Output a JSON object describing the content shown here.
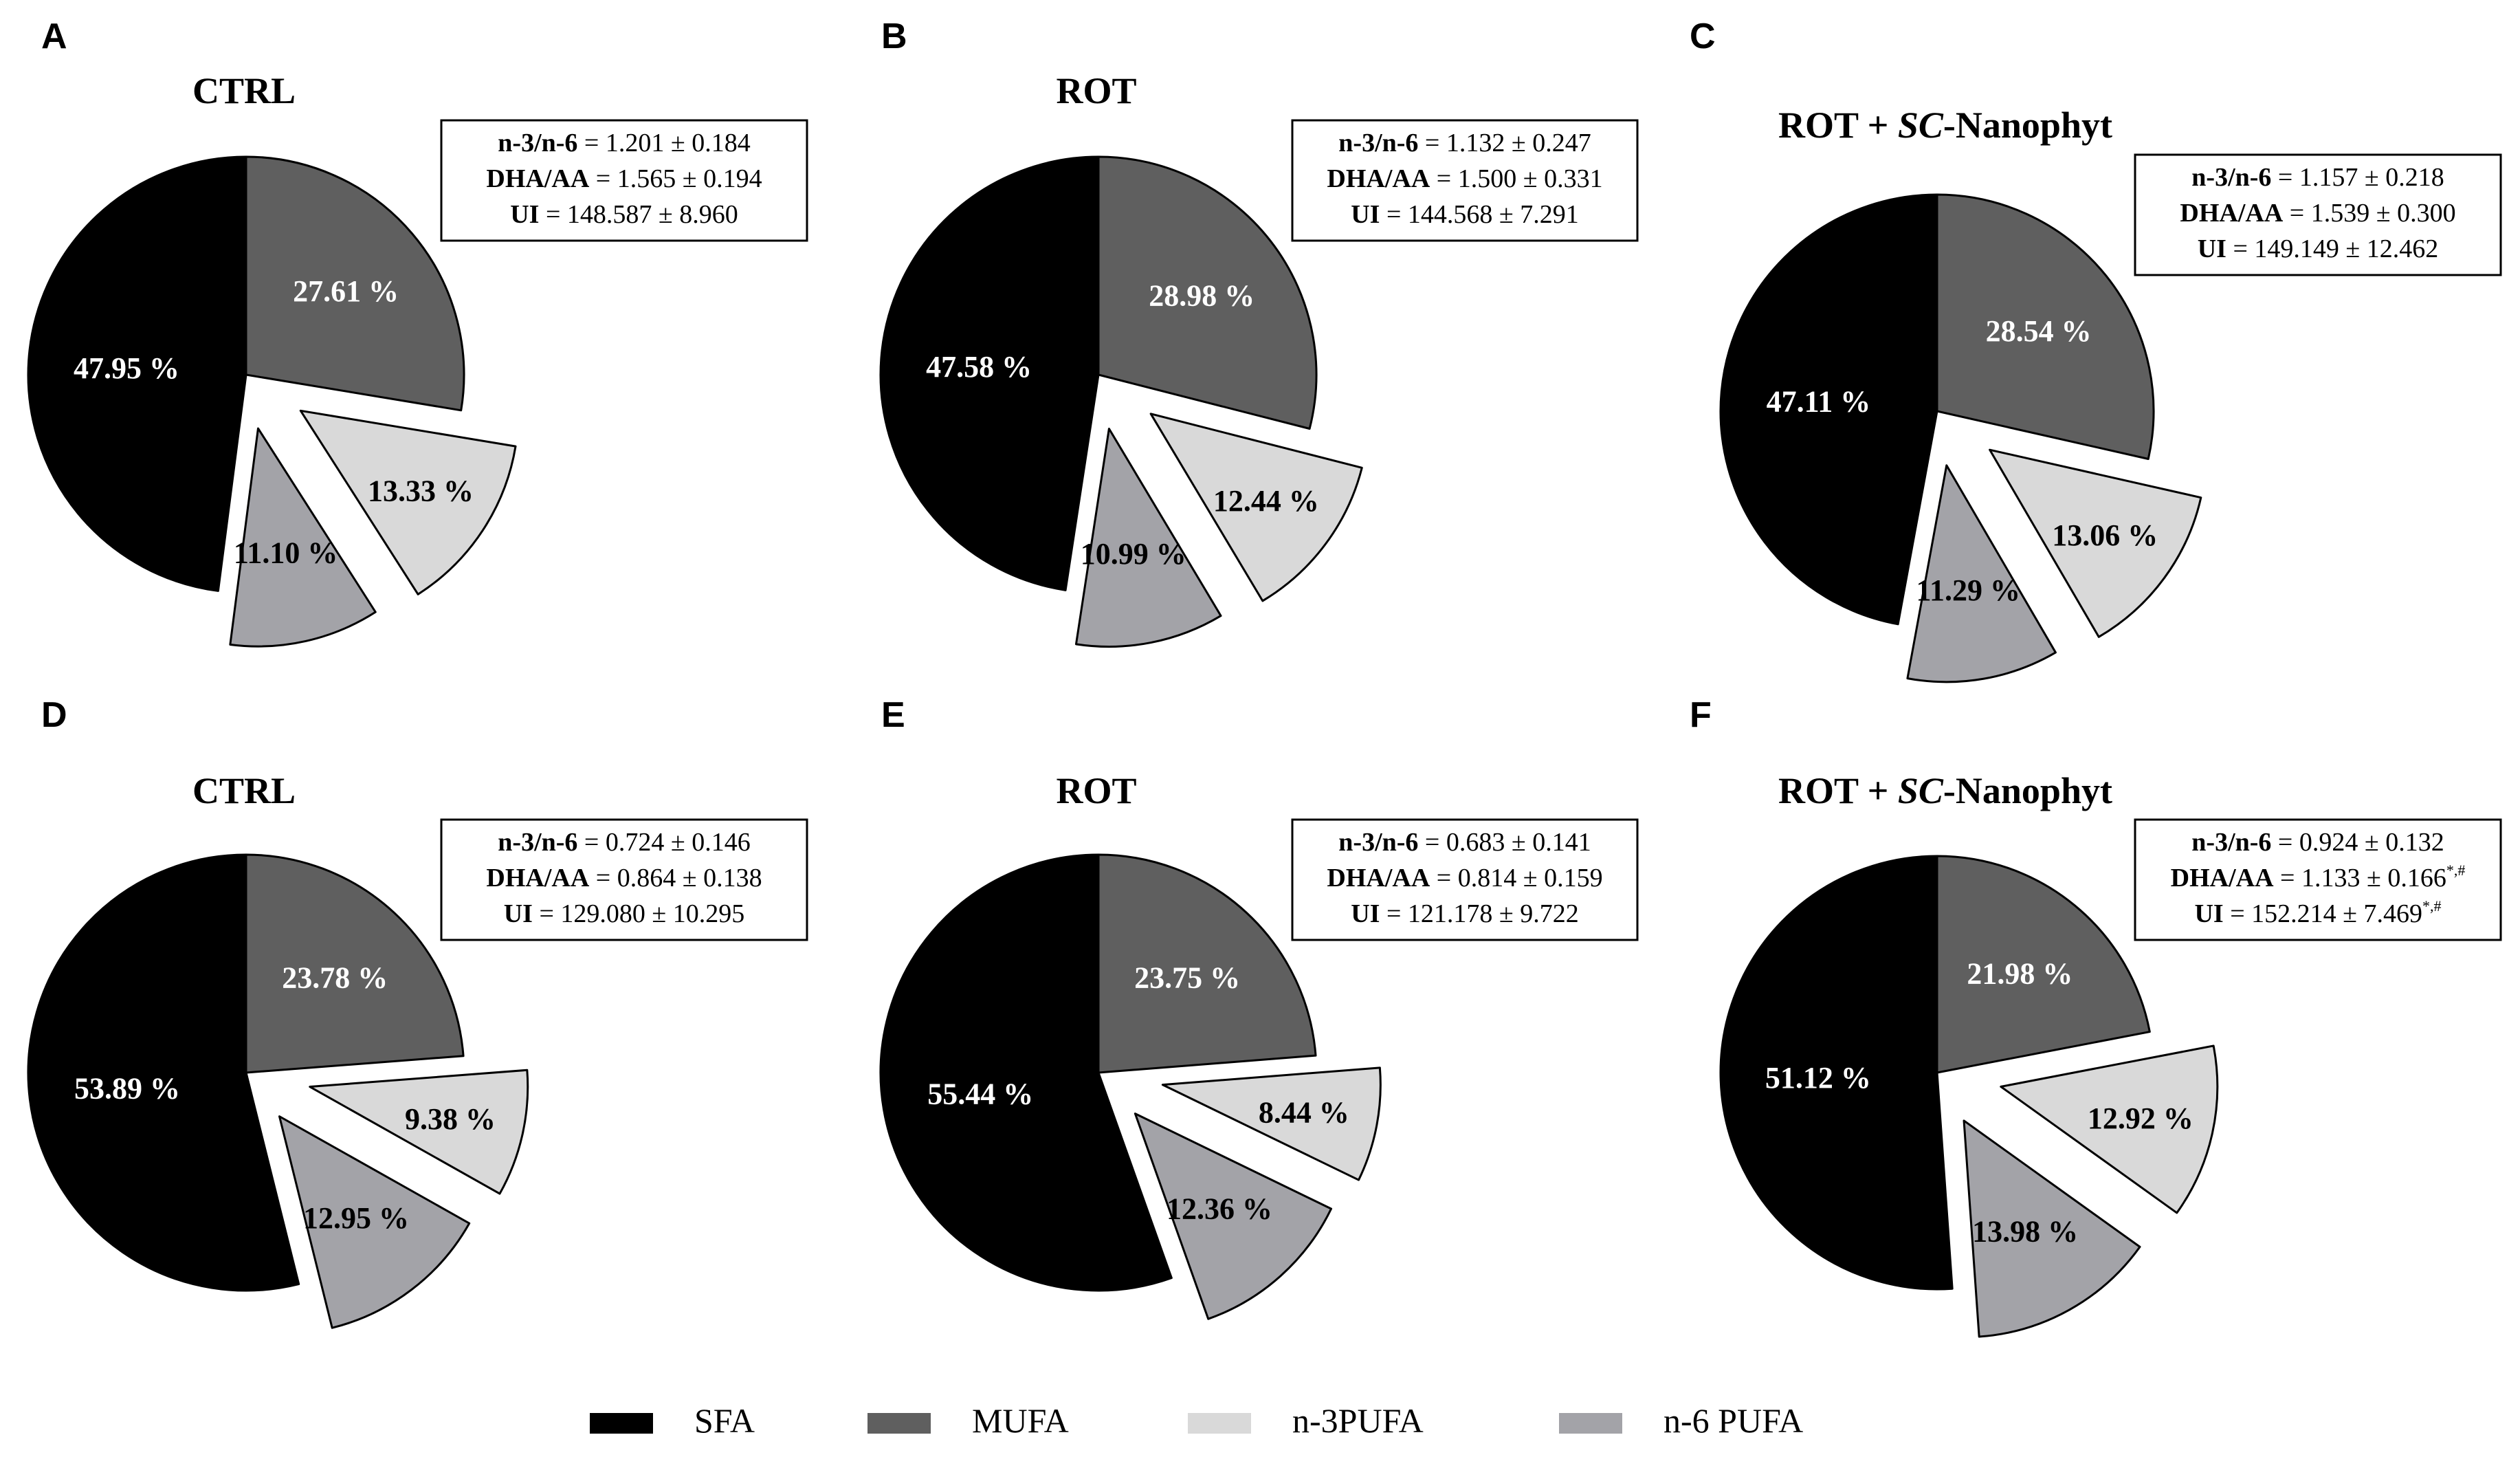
{
  "slice_colors": {
    "SFA": "#000000",
    "MUFA": "#5f5f5f",
    "n-3PUFA": "#d9d9d9",
    "n-6 PUFA": "#a3a3a8"
  },
  "legend": [
    {
      "name": "SFA",
      "color": "#000000"
    },
    {
      "name": "MUFA",
      "color": "#5f5f5f"
    },
    {
      "name": "n-3PUFA",
      "color": "#d9d9d9"
    },
    {
      "name": "n-6 PUFA",
      "color": "#a3a3a8"
    }
  ],
  "chart_data": [
    {
      "type": "pie",
      "panel": "A",
      "title": "CTRL",
      "categories": [
        "SFA",
        "MUFA",
        "n-3PUFA",
        "n-6 PUFA"
      ],
      "values": [
        47.95,
        27.61,
        13.33,
        11.1
      ],
      "labels": [
        "47.95 %",
        "27.61 %",
        "13.33 %",
        "11.10 %"
      ],
      "stats": [
        {
          "name": "n-3/n-6",
          "value": "1.201 ± 0.184"
        },
        {
          "name": "DHA/AA",
          "value": "1.565 ± 0.194"
        },
        {
          "name": "UI",
          "value": "148.587 ± 8.960"
        }
      ]
    },
    {
      "type": "pie",
      "panel": "B",
      "title": "ROT",
      "categories": [
        "SFA",
        "MUFA",
        "n-3PUFA",
        "n-6 PUFA"
      ],
      "values": [
        47.58,
        28.98,
        12.44,
        10.99
      ],
      "labels": [
        "47.58 %",
        "28.98 %",
        "12.44 %",
        "10.99 %"
      ],
      "stats": [
        {
          "name": "n-3/n-6",
          "value": "1.132 ± 0.247"
        },
        {
          "name": "DHA/AA",
          "value": "1.500 ± 0.331"
        },
        {
          "name": "UI",
          "value": "144.568 ± 7.291"
        }
      ]
    },
    {
      "type": "pie",
      "panel": "C",
      "title": "ROT + SC-Nanophyt",
      "title_plain": "ROT + ",
      "title_italic": "SC",
      "title_tail": "-Nanophyt",
      "categories": [
        "SFA",
        "MUFA",
        "n-3PUFA",
        "n-6 PUFA"
      ],
      "values": [
        47.11,
        28.54,
        13.06,
        11.29
      ],
      "labels": [
        "47.11 %",
        "28.54 %",
        "13.06 %",
        "11.29 %"
      ],
      "stats": [
        {
          "name": "n-3/n-6",
          "value": "1.157 ± 0.218"
        },
        {
          "name": "DHA/AA",
          "value": "1.539 ± 0.300"
        },
        {
          "name": "UI",
          "value": "149.149 ± 12.462"
        }
      ]
    },
    {
      "type": "pie",
      "panel": "D",
      "title": "CTRL",
      "categories": [
        "SFA",
        "MUFA",
        "n-3PUFA",
        "n-6 PUFA"
      ],
      "values": [
        53.89,
        23.78,
        9.38,
        12.95
      ],
      "labels": [
        "53.89 %",
        "23.78 %",
        "9.38 %",
        "12.95 %"
      ],
      "stats": [
        {
          "name": "n-3/n-6",
          "value": "0.724 ± 0.146"
        },
        {
          "name": "DHA/AA",
          "value": "0.864 ± 0.138"
        },
        {
          "name": "UI",
          "value": "129.080 ± 10.295"
        }
      ]
    },
    {
      "type": "pie",
      "panel": "E",
      "title": "ROT",
      "categories": [
        "SFA",
        "MUFA",
        "n-3PUFA",
        "n-6 PUFA"
      ],
      "values": [
        55.44,
        23.75,
        8.44,
        12.36
      ],
      "labels": [
        "55.44 %",
        "23.75 %",
        "8.44 %",
        "12.36 %"
      ],
      "stats": [
        {
          "name": "n-3/n-6",
          "value": "0.683 ± 0.141"
        },
        {
          "name": "DHA/AA",
          "value": "0.814 ± 0.159"
        },
        {
          "name": "UI",
          "value": "121.178 ± 9.722"
        }
      ]
    },
    {
      "type": "pie",
      "panel": "F",
      "title": "ROT + SC-Nanophyt",
      "title_plain": "ROT + ",
      "title_italic": "SC",
      "title_tail": "-Nanophyt",
      "categories": [
        "SFA",
        "MUFA",
        "n-3PUFA",
        "n-6 PUFA"
      ],
      "values": [
        51.12,
        21.98,
        12.92,
        13.98
      ],
      "labels": [
        "51.12 %",
        "21.98 %",
        "12.92 %",
        "13.98 %"
      ],
      "stats": [
        {
          "name": "n-3/n-6",
          "value": "0.924 ± 0.132"
        },
        {
          "name": "DHA/AA",
          "value": "1.133 ± 0.166",
          "sup": "*,#"
        },
        {
          "name": "UI",
          "value": "152.214 ± 7.469",
          "sup": "*,#"
        }
      ]
    }
  ]
}
